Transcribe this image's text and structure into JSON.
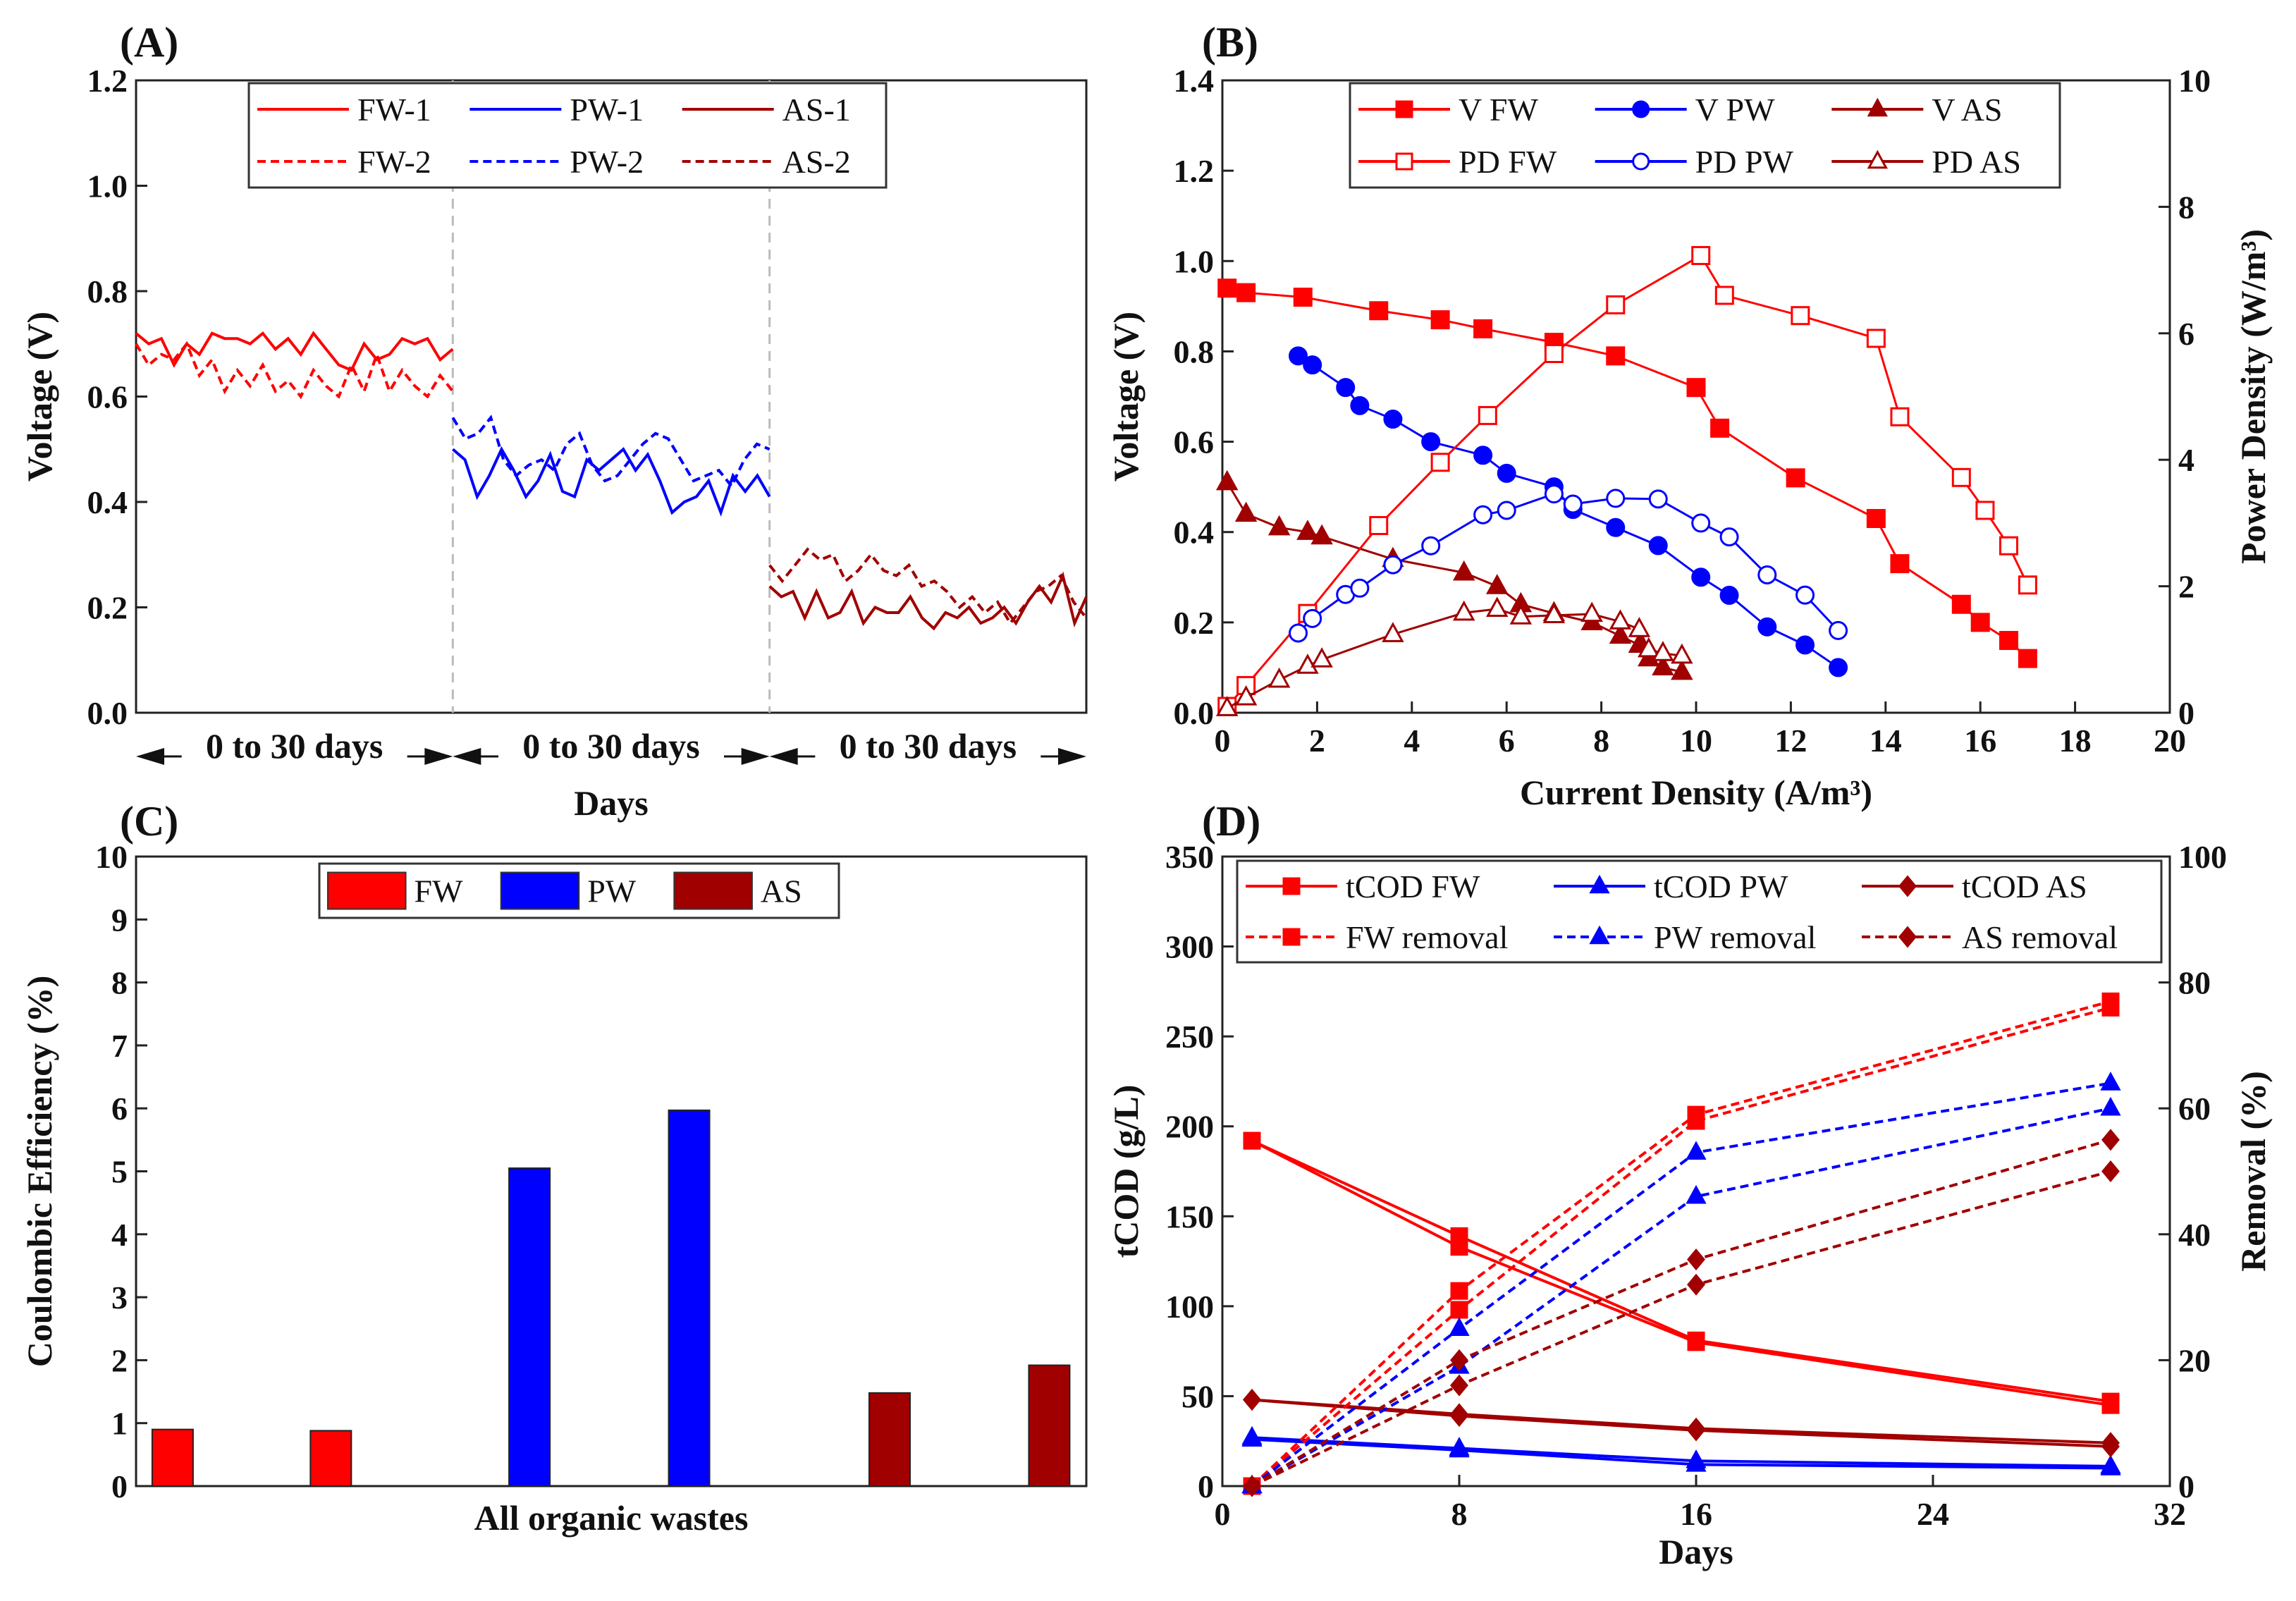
{
  "chart_data": [
    {
      "panel": "(A)",
      "type": "line",
      "ylabel": "Voltage (V)",
      "xlabel": "Days",
      "ylim": [
        0,
        1.2
      ],
      "yticks": [
        "0.0",
        "0.2",
        "0.4",
        "0.6",
        "0.8",
        "1.0",
        "1.2"
      ],
      "segment_labels": [
        "0 to 30 days",
        "0 to 30 days",
        "0 to 30 days"
      ],
      "series": [
        {
          "name": "FW-1",
          "color": "#ff0000",
          "dashed": false,
          "segment": 0,
          "values": [
            0.72,
            0.7,
            0.71,
            0.66,
            0.7,
            0.68,
            0.72,
            0.71,
            0.71,
            0.7,
            0.72,
            0.69,
            0.71,
            0.68,
            0.72,
            0.69,
            0.66,
            0.65,
            0.7,
            0.67,
            0.68,
            0.71,
            0.7,
            0.71,
            0.67,
            0.69
          ]
        },
        {
          "name": "PW-1",
          "color": "#0000ff",
          "dashed": false,
          "segment": 1,
          "values": [
            0.5,
            0.48,
            0.41,
            0.45,
            0.5,
            0.46,
            0.41,
            0.44,
            0.49,
            0.42,
            0.41,
            0.48,
            0.46,
            0.48,
            0.5,
            0.46,
            0.49,
            0.44,
            0.38,
            0.4,
            0.41,
            0.44,
            0.38,
            0.45,
            0.42,
            0.45,
            0.41
          ]
        },
        {
          "name": "AS-1",
          "color": "#a00000",
          "dashed": false,
          "segment": 2,
          "values": [
            0.24,
            0.22,
            0.23,
            0.18,
            0.23,
            0.18,
            0.19,
            0.23,
            0.17,
            0.2,
            0.19,
            0.19,
            0.22,
            0.18,
            0.16,
            0.19,
            0.18,
            0.2,
            0.17,
            0.18,
            0.2,
            0.17,
            0.21,
            0.24,
            0.21,
            0.26,
            0.17,
            0.22
          ]
        },
        {
          "name": "FW-2",
          "color": "#ff0000",
          "dashed": true,
          "segment": 0,
          "values": [
            0.7,
            0.66,
            0.68,
            0.67,
            0.7,
            0.64,
            0.67,
            0.61,
            0.65,
            0.62,
            0.66,
            0.61,
            0.63,
            0.6,
            0.65,
            0.62,
            0.6,
            0.66,
            0.61,
            0.68,
            0.61,
            0.65,
            0.62,
            0.6,
            0.64,
            0.61
          ]
        },
        {
          "name": "PW-2",
          "color": "#0000ff",
          "dashed": true,
          "segment": 1,
          "values": [
            0.56,
            0.52,
            0.53,
            0.56,
            0.48,
            0.45,
            0.47,
            0.48,
            0.46,
            0.51,
            0.53,
            0.47,
            0.44,
            0.45,
            0.48,
            0.51,
            0.53,
            0.52,
            0.48,
            0.44,
            0.45,
            0.46,
            0.43,
            0.48,
            0.51,
            0.5
          ]
        },
        {
          "name": "AS-2",
          "color": "#a00000",
          "dashed": true,
          "segment": 2,
          "values": [
            0.28,
            0.25,
            0.28,
            0.31,
            0.29,
            0.3,
            0.25,
            0.27,
            0.3,
            0.27,
            0.26,
            0.28,
            0.24,
            0.25,
            0.23,
            0.2,
            0.22,
            0.19,
            0.21,
            0.17,
            0.2,
            0.23,
            0.24,
            0.26,
            0.21,
            0.18
          ]
        }
      ]
    },
    {
      "panel": "(B)",
      "type": "line",
      "xlabel": "Current Density (A/m³)",
      "ylabel": "Voltage (V)",
      "y2label": "Power Density (W/m³)",
      "xlim": [
        0,
        20
      ],
      "ylim": [
        0,
        1.4
      ],
      "y2lim": [
        0,
        10
      ],
      "xticks": [
        "0",
        "2",
        "4",
        "6",
        "8",
        "10",
        "12",
        "14",
        "16",
        "18",
        "20"
      ],
      "yticks": [
        "0.0",
        "0.2",
        "0.4",
        "0.6",
        "0.8",
        "1.0",
        "1.2",
        "1.4"
      ],
      "y2ticks": [
        "0",
        "2",
        "4",
        "6",
        "8",
        "10"
      ],
      "series": [
        {
          "name": "V FW",
          "color": "#ff0000",
          "marker": "square",
          "filled": true,
          "axis": "y",
          "x": [
            0.1,
            0.5,
            1.7,
            3.3,
            4.6,
            5.5,
            7.0,
            8.3,
            10.0,
            10.5,
            12.1,
            13.8,
            14.3,
            15.6,
            16.0,
            16.6,
            17.0
          ],
          "y": [
            0.94,
            0.93,
            0.92,
            0.89,
            0.87,
            0.85,
            0.82,
            0.79,
            0.72,
            0.63,
            0.52,
            0.43,
            0.33,
            0.24,
            0.2,
            0.16,
            0.12
          ]
        },
        {
          "name": "V PW",
          "color": "#0000ff",
          "marker": "circle",
          "filled": true,
          "axis": "y",
          "x": [
            1.6,
            1.9,
            2.6,
            2.9,
            3.6,
            4.4,
            5.5,
            6.0,
            7.0,
            7.4,
            8.3,
            9.2,
            10.1,
            10.7,
            11.5,
            12.3,
            13.0
          ],
          "y": [
            0.79,
            0.77,
            0.72,
            0.68,
            0.65,
            0.6,
            0.57,
            0.53,
            0.5,
            0.45,
            0.41,
            0.37,
            0.3,
            0.26,
            0.19,
            0.15,
            0.1
          ]
        },
        {
          "name": "V AS",
          "color": "#a00000",
          "marker": "triangle",
          "filled": true,
          "axis": "y",
          "x": [
            0.1,
            0.5,
            1.2,
            1.8,
            2.1,
            3.6,
            5.1,
            5.8,
            6.3,
            7.0,
            7.8,
            8.4,
            8.8,
            9.0,
            9.3,
            9.7
          ],
          "y": [
            0.51,
            0.44,
            0.41,
            0.4,
            0.39,
            0.34,
            0.31,
            0.28,
            0.24,
            0.22,
            0.2,
            0.17,
            0.15,
            0.12,
            0.1,
            0.09
          ]
        },
        {
          "name": "PD FW",
          "color": "#ff0000",
          "marker": "square",
          "filled": false,
          "axis": "y2",
          "x": [
            0.1,
            0.5,
            1.8,
            3.3,
            4.6,
            5.6,
            7.0,
            8.3,
            10.1,
            10.6,
            12.2,
            13.8,
            14.3,
            15.6,
            16.1,
            16.6,
            17.0
          ],
          "y": [
            0.1,
            0.43,
            1.57,
            2.96,
            3.96,
            4.7,
            5.68,
            6.45,
            7.23,
            6.6,
            6.28,
            5.92,
            4.68,
            3.72,
            3.2,
            2.64,
            2.02
          ]
        },
        {
          "name": "PD PW",
          "color": "#0000ff",
          "marker": "circle",
          "filled": false,
          "axis": "y2",
          "x": [
            1.6,
            1.9,
            2.6,
            2.9,
            3.6,
            4.4,
            5.5,
            6.0,
            7.0,
            7.4,
            8.3,
            9.2,
            10.1,
            10.7,
            11.5,
            12.3,
            13.0
          ],
          "y": [
            1.26,
            1.49,
            1.87,
            1.97,
            2.34,
            2.64,
            3.13,
            3.2,
            3.46,
            3.3,
            3.39,
            3.38,
            3.0,
            2.78,
            2.18,
            1.86,
            1.3
          ]
        },
        {
          "name": "PD AS",
          "color": "#a00000",
          "marker": "triangle",
          "filled": false,
          "axis": "y2",
          "x": [
            0.1,
            0.5,
            1.2,
            1.8,
            2.1,
            3.6,
            5.1,
            5.8,
            6.3,
            7.0,
            7.8,
            8.4,
            8.8,
            9.0,
            9.3,
            9.7
          ],
          "y": [
            0.07,
            0.24,
            0.52,
            0.74,
            0.84,
            1.24,
            1.58,
            1.64,
            1.52,
            1.54,
            1.56,
            1.44,
            1.32,
            1.0,
            0.94,
            0.9
          ]
        }
      ]
    },
    {
      "panel": "(C)",
      "type": "bar",
      "ylabel": "Coulombic Efficiency (%)",
      "xlabel": "All organic wastes",
      "ylim": [
        0,
        10
      ],
      "yticks": [
        "0",
        "1",
        "2",
        "3",
        "4",
        "5",
        "6",
        "7",
        "8",
        "9",
        "10"
      ],
      "series": [
        {
          "name": "FW",
          "color": "#ff0000",
          "values": [
            0.9,
            0.88
          ]
        },
        {
          "name": "PW",
          "color": "#0000ff",
          "values": [
            5.05,
            5.97
          ]
        },
        {
          "name": "AS",
          "color": "#a00000",
          "values": [
            1.48,
            1.92
          ]
        }
      ]
    },
    {
      "panel": "(D)",
      "type": "line",
      "xlabel": "Days",
      "ylabel": "tCOD (g/L)",
      "y2label": "Removal (%)",
      "xlim": [
        0,
        32
      ],
      "ylim": [
        0,
        350
      ],
      "y2lim": [
        0,
        100
      ],
      "xticks": [
        "0",
        "8",
        "16",
        "24",
        "32"
      ],
      "yticks": [
        "0",
        "50",
        "100",
        "150",
        "200",
        "250",
        "300",
        "350"
      ],
      "y2ticks": [
        "0",
        "20",
        "40",
        "60",
        "80",
        "100"
      ],
      "x": [
        1,
        8,
        16,
        30
      ],
      "series": [
        {
          "name": "tCOD FW",
          "color": "#ff0000",
          "marker": "square",
          "dashed": false,
          "axis": "y",
          "runs": [
            [
              192,
              139,
              81,
              47
            ],
            [
              192,
              133,
              80,
              45
            ]
          ]
        },
        {
          "name": "tCOD PW",
          "color": "#0000ff",
          "marker": "triangle",
          "dashed": false,
          "axis": "y",
          "runs": [
            [
              27,
              21,
              14,
              11
            ],
            [
              26,
              20,
              12,
              10
            ]
          ]
        },
        {
          "name": "tCOD AS",
          "color": "#a00000",
          "marker": "diamond",
          "dashed": false,
          "axis": "y",
          "runs": [
            [
              48,
              40,
              32,
              24
            ],
            [
              48,
              39,
              31,
              22
            ]
          ]
        },
        {
          "name": "FW removal",
          "color": "#ff0000",
          "marker": "square",
          "dashed": true,
          "axis": "y2",
          "runs": [
            [
              0,
              31,
              59,
              77
            ],
            [
              0,
              28,
              58,
              76
            ]
          ]
        },
        {
          "name": "PW removal",
          "color": "#0000ff",
          "marker": "triangle",
          "dashed": true,
          "axis": "y2",
          "runs": [
            [
              0,
              25,
              53,
              64
            ],
            [
              0,
              19,
              46,
              60
            ]
          ]
        },
        {
          "name": "AS removal",
          "color": "#a00000",
          "marker": "diamond",
          "dashed": true,
          "axis": "y2",
          "runs": [
            [
              0,
              20,
              36,
              55
            ],
            [
              0,
              16,
              32,
              50
            ]
          ]
        }
      ]
    }
  ]
}
